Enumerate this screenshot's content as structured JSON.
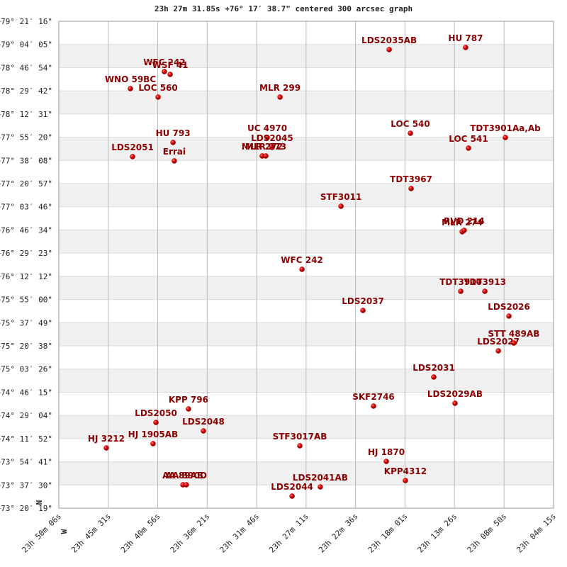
{
  "chart_data": {
    "type": "scatter",
    "title": "23h 27m 31.85s +76° 17′ 38.7\" centered 300 arcsec graph",
    "point_labels": [
      "LDS2035AB",
      "HU  787",
      "WFC 242",
      "WSF 41",
      "WNO  59BC",
      "LOC 560",
      "MLR 299",
      "LOC 540",
      "TDT3901Aa,Ab",
      "LOC 541",
      "HU  793",
      "LDS2051",
      "Errai",
      "UC 4970",
      "LDS2045",
      "MLR 272",
      "MLR 273",
      "TDT3967",
      "STF3011",
      "MLR 274",
      "RVD 214",
      "WFC 242",
      "TDT3910",
      "TDT3913",
      "LDS2026",
      "LDS2037",
      "STT 489AB",
      "LDS2027",
      "LDS2031",
      "LDS2029AB",
      "SKF2746",
      "KPP 796",
      "LDS2050",
      "LDS2048",
      "HJ 1905AB",
      "HJ 3212",
      "STF3017AB",
      "HJ 1870",
      "KPP4312",
      "AA  89AB",
      "AA  89CD",
      "LDS2041AB",
      "LDS2044"
    ],
    "x": [
      83969,
      83544,
      85219,
      85187,
      85408,
      85254,
      84576,
      83851,
      83323,
      83528,
      85171,
      85396,
      85164,
      84647,
      84620,
      84675,
      84655,
      83847,
      84237,
      83563,
      83552,
      84454,
      83571,
      83437,
      83303,
      84115,
      83276,
      83362,
      83721,
      83603,
      84056,
      85085,
      85266,
      85002,
      85282,
      85542,
      84466,
      83985,
      83879,
      85116,
      85097,
      84352,
      84509
    ],
    "values": [
      284415,
      284510,
      283438,
      283312,
      282681,
      282303,
      282303,
      280695,
      280506,
      280033,
      280285,
      279655,
      279466,
      280506,
      280065,
      279686,
      279686,
      278236,
      277448,
      276313,
      276376,
      274643,
      273665,
      273665,
      272562,
      272814,
      271364,
      271017,
      269851,
      268685,
      268558,
      268432,
      267833,
      267455,
      266888,
      266699,
      266793,
      266100,
      265248,
      265059,
      265059,
      264965,
      264555
    ],
    "color": "#cc0000",
    "label_color": "#8b0000",
    "xlim": [
      85806,
      83055
    ],
    "xticks": [
      {
        "value": 85806,
        "label": "23h 50m 06s"
      },
      {
        "value": 85531,
        "label": "23h 45m 31s"
      },
      {
        "value": 85256,
        "label": "23h 40m 56s"
      },
      {
        "value": 84981,
        "label": "23h 36m 21s"
      },
      {
        "value": 84706,
        "label": "23h 31m 46s"
      },
      {
        "value": 84431,
        "label": "23h 27m 11s"
      },
      {
        "value": 84156,
        "label": "23h 22m 36s"
      },
      {
        "value": 83881,
        "label": "23h 18m 01s"
      },
      {
        "value": 83606,
        "label": "23h 13m 26s"
      },
      {
        "value": 83330,
        "label": "23h 08m 50s"
      },
      {
        "value": 83055,
        "label": "23h 04m 15s"
      }
    ],
    "ylim": [
      264019,
      285676
    ],
    "yticks": [
      {
        "value": 285676,
        "label": "+79° 21′ 16\""
      },
      {
        "value": 284645,
        "label": "+79° 04′ 05\""
      },
      {
        "value": 283614,
        "label": "+78° 46′ 54\""
      },
      {
        "value": 282582,
        "label": "+78° 29′ 42\""
      },
      {
        "value": 281551,
        "label": "+78° 12′ 31\""
      },
      {
        "value": 280520,
        "label": "+77° 55′ 20\""
      },
      {
        "value": 279488,
        "label": "+77° 38′ 08\""
      },
      {
        "value": 278457,
        "label": "+77° 20′ 57\""
      },
      {
        "value": 277426,
        "label": "+77° 03′ 46\""
      },
      {
        "value": 276394,
        "label": "+76° 46′ 34\""
      },
      {
        "value": 275363,
        "label": "+76° 29′ 23\""
      },
      {
        "value": 274332,
        "label": "+76° 12′ 12\""
      },
      {
        "value": 273300,
        "label": "+75° 55′ 00\""
      },
      {
        "value": 272269,
        "label": "+75° 37′ 49\""
      },
      {
        "value": 271238,
        "label": "+75° 20′ 38\""
      },
      {
        "value": 270206,
        "label": "+75° 03′ 26\""
      },
      {
        "value": 269175,
        "label": "+74° 46′ 15\""
      },
      {
        "value": 268144,
        "label": "+74° 29′ 04\""
      },
      {
        "value": 267112,
        "label": "+74° 11′ 52\""
      },
      {
        "value": 266081,
        "label": "+73° 54′ 41\""
      },
      {
        "value": 265050,
        "label": "+73° 37′ 30\""
      },
      {
        "value": 264019,
        "label": "+73° 20′ 19\""
      }
    ],
    "grid": true
  },
  "compass": {
    "north": "N",
    "west": "W"
  }
}
